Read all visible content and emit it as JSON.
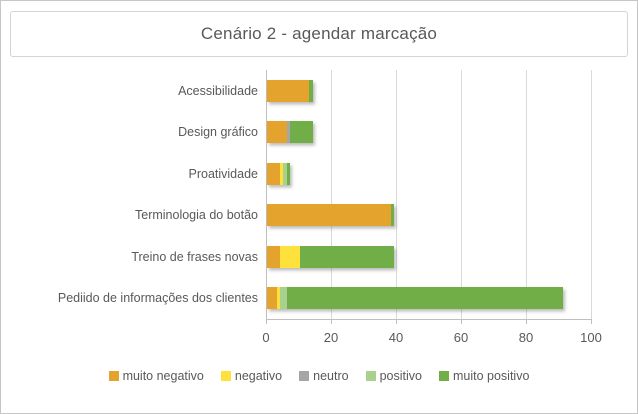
{
  "chart_data": {
    "type": "bar",
    "orientation": "horizontal",
    "stacked": true,
    "title": "Cenário 2 - agendar marcação",
    "categories": [
      "Acessibilidade",
      "Design gráfico",
      "Proatividade",
      "Terminologia do botão",
      "Treino de frases novas",
      "Pediido de informações dos clientes"
    ],
    "series": [
      {
        "name": "muito negativo",
        "color": "#e4a32d",
        "values": [
          13,
          6,
          4,
          38,
          4,
          3
        ]
      },
      {
        "name": "negativo",
        "color": "#ffe13b",
        "values": [
          0,
          0,
          1,
          0,
          6,
          1
        ]
      },
      {
        "name": "neutro",
        "color": "#a6a6a6",
        "values": [
          0,
          1,
          0,
          0,
          0,
          0
        ]
      },
      {
        "name": "positivo",
        "color": "#a9d18e",
        "values": [
          0,
          0,
          1,
          0,
          0,
          2
        ]
      },
      {
        "name": "muito positivo",
        "color": "#71ae47",
        "values": [
          1,
          7,
          1,
          1,
          29,
          85
        ]
      }
    ],
    "xlim": [
      0,
      100
    ],
    "xticks": [
      0,
      20,
      40,
      60,
      80,
      100
    ],
    "grid": "vertical",
    "legend_position": "bottom",
    "axis_color": "#bfbfbf",
    "gridline_color": "#d9d9d9",
    "text_color": "#595959"
  }
}
